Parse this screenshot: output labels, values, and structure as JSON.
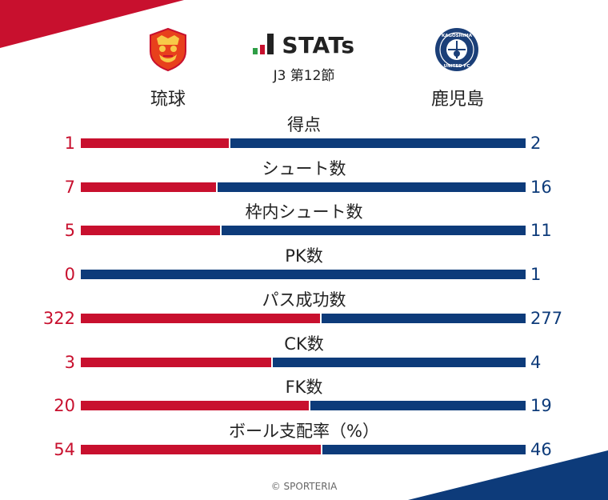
{
  "header": {
    "title": "STATs",
    "subtitle": "J3 第12節",
    "home_team": "琉球",
    "away_team": "鹿児島",
    "away_logo_top_text": "KAGOSHIMA",
    "away_logo_bottom_text": "UNITED FC"
  },
  "colors": {
    "home": "#c8102e",
    "away": "#0d3b7a"
  },
  "chart_data": {
    "type": "bar",
    "orientation": "horizontal-stacked-comparison",
    "categories": [
      "得点",
      "シュート数",
      "枠内シュート数",
      "PK数",
      "パス成功数",
      "CK数",
      "FK数",
      "ボール支配率（%）"
    ],
    "series": [
      {
        "name": "琉球",
        "values": [
          1,
          7,
          5,
          0,
          322,
          3,
          20,
          54
        ]
      },
      {
        "name": "鹿児島",
        "values": [
          2,
          16,
          11,
          1,
          277,
          4,
          19,
          46
        ]
      }
    ]
  },
  "footer": {
    "copyright": "© SPORTERIA"
  }
}
